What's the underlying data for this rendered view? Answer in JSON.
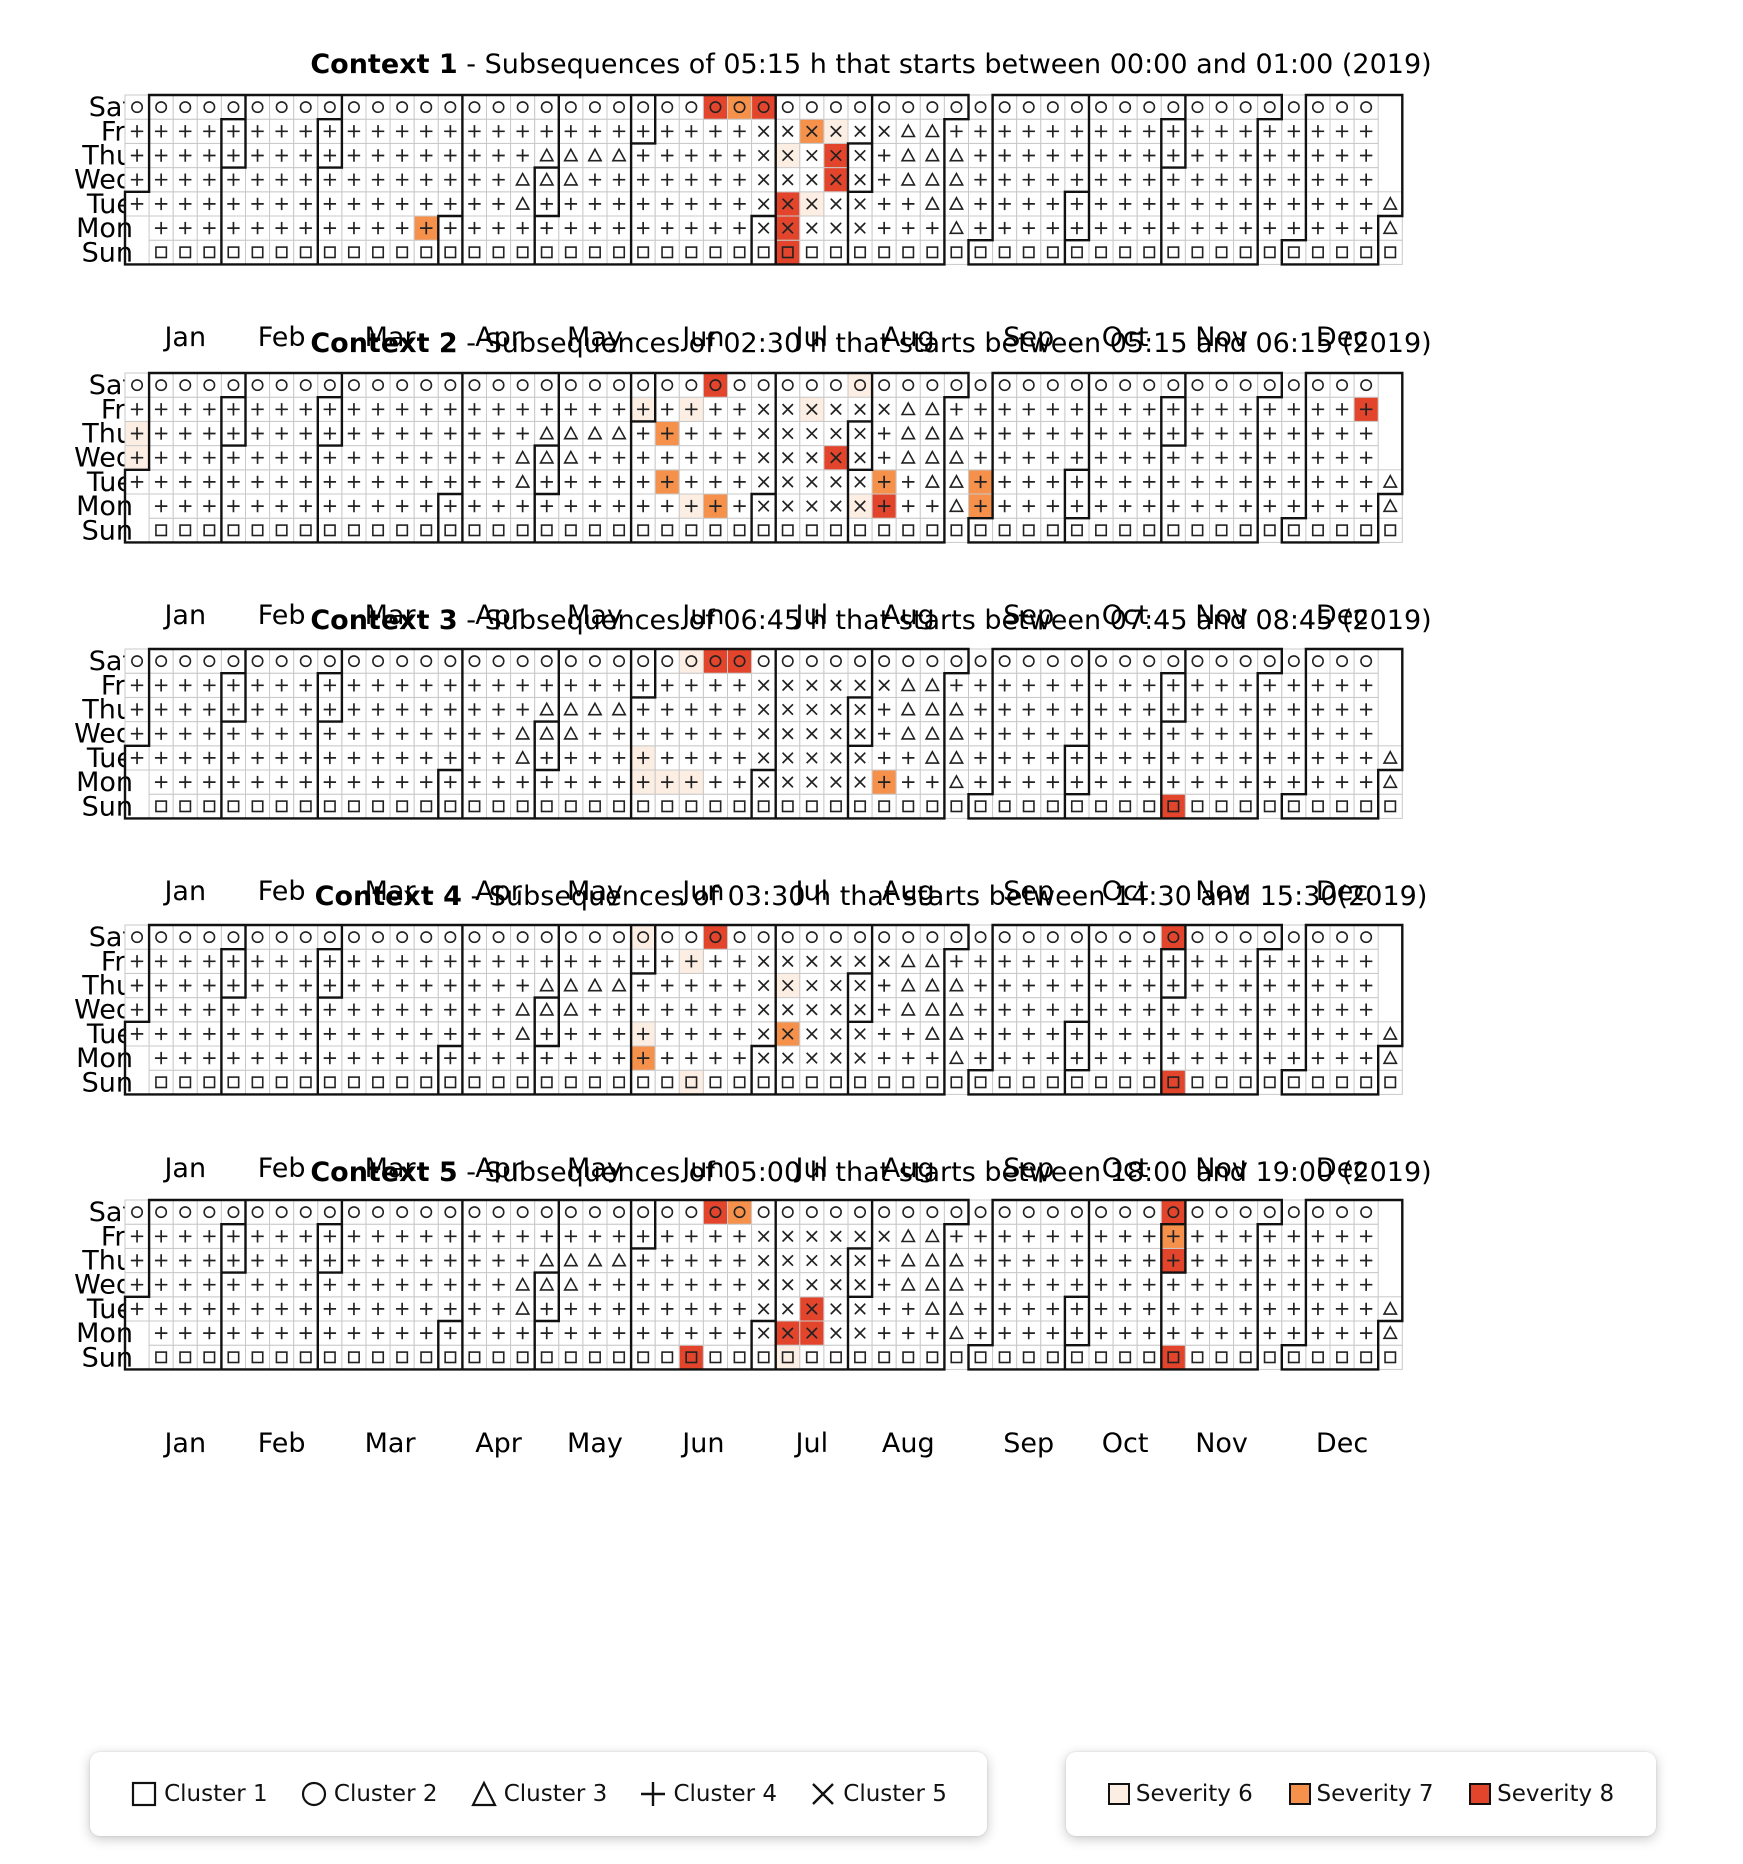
{
  "rows": [
    "Sat",
    "Fri",
    "Thu",
    "Wed",
    "Tue",
    "Mon",
    "Sun"
  ],
  "months": [
    "Jan",
    "Feb",
    "Mar",
    "Apr",
    "May",
    "Jun",
    "Jul",
    "Aug",
    "Sep",
    "Oct",
    "Nov",
    "Dec"
  ],
  "legend": {
    "clusters": [
      {
        "shape": "square",
        "label": "Cluster 1"
      },
      {
        "shape": "circle",
        "label": "Cluster 2"
      },
      {
        "shape": "triangle",
        "label": "Cluster 3"
      },
      {
        "shape": "plus",
        "label": "Cluster 4"
      },
      {
        "shape": "cross",
        "label": "Cluster 5"
      }
    ],
    "severity": [
      {
        "label": "Severity 6",
        "color": "#fdeee4"
      },
      {
        "label": "Severity 7",
        "color": "#f5914a"
      },
      {
        "label": "Severity 8",
        "color": "#e2452c"
      }
    ]
  },
  "chart_data": {
    "type": "heatmap",
    "year": 2019,
    "cluster_calendar": {
      "Jan": [
        "+",
        "o",
        "o",
        "o",
        "o",
        "o",
        "o",
        "+",
        "o",
        "o",
        "o",
        "o",
        "o",
        "o",
        "+",
        "o",
        "o",
        "o",
        "o",
        "o",
        "o",
        "+",
        "o",
        "o",
        "o",
        "o",
        "o",
        "o",
        "+",
        "o",
        "o"
      ],
      "Feb": [
        "o",
        "o",
        "o",
        "o",
        "o",
        "+",
        "o",
        "o",
        "o",
        "o",
        "o",
        "o",
        "+",
        "o",
        "o",
        "o",
        "o",
        "o",
        "o",
        "+",
        "o",
        "o",
        "o",
        "o",
        "o",
        "o",
        "+",
        "o"
      ],
      "Mar": [
        "o",
        "o",
        "o",
        "o",
        "+",
        "o",
        "o",
        "o",
        "o",
        "o",
        "o",
        "+",
        "o",
        "o",
        "o",
        "o",
        "o",
        "o",
        "+",
        "o",
        "o",
        "o",
        "o",
        "o",
        "o",
        "+",
        "o",
        "o",
        "o",
        "o",
        "o"
      ],
      "Apr": [
        "+",
        "o",
        "o",
        "o",
        "o",
        "o",
        "o",
        "+",
        "o",
        "o",
        "o",
        "o",
        "o",
        "o",
        "+",
        "o",
        "o",
        "o",
        "o",
        "o",
        "o",
        "+",
        "^",
        "^",
        "o",
        "o",
        "o",
        "o",
        "o",
        "o"
      ],
      "May": [
        "^",
        "^",
        "o",
        "o",
        "+",
        "o",
        "o",
        "^",
        "^",
        "o",
        "o",
        "o",
        "o",
        "o",
        "o",
        "^",
        "o",
        "o",
        "o",
        "o",
        "o",
        "o",
        "^",
        "o",
        "o",
        "o",
        "o",
        "o",
        "+",
        "o",
        "o"
      ],
      "Jun": [
        "+",
        "o",
        "o",
        "o",
        "o",
        "o",
        "o",
        "+",
        "o",
        "o",
        "o",
        "o",
        "o",
        "o",
        "o",
        "o",
        "o",
        "o",
        "o",
        "o",
        "o",
        "o",
        "o",
        "o",
        "o",
        "o",
        "o",
        "o",
        "o",
        "o"
      ],
      "Jul": [
        "x",
        "x",
        "x",
        "x",
        "x",
        "o",
        "o",
        "x",
        "x",
        "x",
        "x",
        "x",
        "o",
        "o",
        "x",
        "x",
        "x",
        "x",
        "x",
        "o",
        "o",
        "x",
        "x",
        "x",
        "x",
        "x",
        "o",
        "o",
        "x",
        "x",
        "x"
      ],
      "Aug": [
        "x",
        "x",
        "o",
        "o",
        "+",
        "+",
        "+",
        "+",
        "x",
        "^",
        "^",
        "o",
        "o",
        "^",
        "^",
        "^",
        "^",
        "o",
        "o",
        "^",
        "^",
        "^",
        "^",
        "o",
        "o",
        "^",
        "^",
        "^",
        "^",
        "o",
        "o"
      ],
      "Sep": [
        "o",
        "+",
        "+",
        "+",
        "+",
        "+",
        "o",
        "o",
        "+",
        "+",
        "+",
        "+",
        "+",
        "o",
        "o",
        "+",
        "+",
        "+",
        "+",
        "+",
        "o",
        "o",
        "+",
        "+",
        "+",
        "+",
        "+",
        "o",
        "o",
        "+"
      ],
      "Oct": [
        "+",
        "+",
        "+",
        "+",
        "o",
        "o",
        "+",
        "+",
        "+",
        "+",
        "+",
        "o",
        "o",
        "+",
        "+",
        "+",
        "+",
        "+",
        "o",
        "o",
        "+",
        "+",
        "+",
        "+",
        "+",
        "o",
        "o",
        "+",
        "+",
        "+",
        "+"
      ],
      "Nov": [
        "+",
        "o",
        "o",
        "+",
        "+",
        "+",
        "+",
        "+",
        "o",
        "o",
        "+",
        "+",
        "+",
        "+",
        "+",
        "o",
        "o",
        "+",
        "+",
        "+",
        "+",
        "+",
        "o",
        "o",
        "+",
        "+",
        "+",
        "+",
        "+",
        "o"
      ],
      "Dec": [
        "o",
        "+",
        "+",
        "+",
        "+",
        "+",
        "o",
        "o",
        "+",
        "+",
        "+",
        "+",
        "+",
        "o",
        "o",
        "+",
        "+",
        "+",
        "+",
        "+",
        "o",
        "o",
        "+",
        "+",
        "+",
        "+",
        "+",
        "o",
        "o",
        "^",
        "^"
      ]
    },
    "contexts": [
      {
        "label": "Context 1",
        "subtitle": " - Subsequences of 05:15 h that starts between 00:00 and 01:00 (2019)",
        "severity_cells": [
          {
            "date": "2019-03-25",
            "severity": 7
          },
          {
            "date": "2019-06-22",
            "severity": 8
          },
          {
            "date": "2019-06-29",
            "severity": 7
          },
          {
            "date": "2019-07-06",
            "severity": 8
          },
          {
            "date": "2019-07-07",
            "severity": 8
          },
          {
            "date": "2019-07-08",
            "severity": 8
          },
          {
            "date": "2019-07-09",
            "severity": 8
          },
          {
            "date": "2019-07-11",
            "severity": 6
          },
          {
            "date": "2019-07-16",
            "severity": 6
          },
          {
            "date": "2019-07-19",
            "severity": 7
          },
          {
            "date": "2019-07-24",
            "severity": 8
          },
          {
            "date": "2019-07-25",
            "severity": 8
          },
          {
            "date": "2019-07-26",
            "severity": 6
          }
        ]
      },
      {
        "label": "Context 2",
        "subtitle": " - Subsequences of 02:30 h that starts between 05:15 and 06:15 (2019)",
        "severity_cells": [
          {
            "date": "2019-01-02",
            "severity": 6
          },
          {
            "date": "2019-01-03",
            "severity": 6
          },
          {
            "date": "2019-05-31",
            "severity": 6
          },
          {
            "date": "2019-06-04",
            "severity": 7
          },
          {
            "date": "2019-06-06",
            "severity": 7
          },
          {
            "date": "2019-06-10",
            "severity": 6
          },
          {
            "date": "2019-06-14",
            "severity": 6
          },
          {
            "date": "2019-06-17",
            "severity": 7
          },
          {
            "date": "2019-06-22",
            "severity": 8
          },
          {
            "date": "2019-07-19",
            "severity": 6
          },
          {
            "date": "2019-07-24",
            "severity": 8
          },
          {
            "date": "2019-07-29",
            "severity": 6
          },
          {
            "date": "2019-08-03",
            "severity": 6
          },
          {
            "date": "2019-08-05",
            "severity": 8
          },
          {
            "date": "2019-08-06",
            "severity": 7
          },
          {
            "date": "2019-09-02",
            "severity": 7
          },
          {
            "date": "2019-09-03",
            "severity": 7
          },
          {
            "date": "2019-12-27",
            "severity": 8
          }
        ]
      },
      {
        "label": "Context 3",
        "subtitle": " - Subsequences of 06:45 h that starts between 07:45 and 08:45 (2019)",
        "severity_cells": [
          {
            "date": "2019-05-27",
            "severity": 6
          },
          {
            "date": "2019-05-28",
            "severity": 6
          },
          {
            "date": "2019-06-03",
            "severity": 6
          },
          {
            "date": "2019-06-10",
            "severity": 6
          },
          {
            "date": "2019-06-15",
            "severity": 6
          },
          {
            "date": "2019-06-22",
            "severity": 8
          },
          {
            "date": "2019-06-29",
            "severity": 8
          },
          {
            "date": "2019-08-05",
            "severity": 7
          },
          {
            "date": "2019-10-27",
            "severity": 8
          }
        ]
      },
      {
        "label": "Context 4",
        "subtitle": " - Subsequences of 03:30 h that starts between 14:30 and 15:30(2019)",
        "severity_cells": [
          {
            "date": "2019-05-27",
            "severity": 7
          },
          {
            "date": "2019-05-28",
            "severity": 6
          },
          {
            "date": "2019-06-01",
            "severity": 6
          },
          {
            "date": "2019-06-09",
            "severity": 6
          },
          {
            "date": "2019-06-14",
            "severity": 6
          },
          {
            "date": "2019-06-22",
            "severity": 8
          },
          {
            "date": "2019-07-09",
            "severity": 7
          },
          {
            "date": "2019-07-11",
            "severity": 6
          },
          {
            "date": "2019-10-27",
            "severity": 8
          },
          {
            "date": "2019-11-02",
            "severity": 8
          }
        ]
      },
      {
        "label": "Context 5",
        "subtitle": " - Subsequences of 05:00 h that starts between 18:00 and 19:00 (2019)",
        "severity_cells": [
          {
            "date": "2019-06-09",
            "severity": 8
          },
          {
            "date": "2019-06-22",
            "severity": 8
          },
          {
            "date": "2019-06-29",
            "severity": 7
          },
          {
            "date": "2019-07-07",
            "severity": 6
          },
          {
            "date": "2019-07-08",
            "severity": 8
          },
          {
            "date": "2019-07-16",
            "severity": 8
          },
          {
            "date": "2019-07-15",
            "severity": 8
          },
          {
            "date": "2019-10-27",
            "severity": 8
          },
          {
            "date": "2019-10-31",
            "severity": 8
          },
          {
            "date": "2019-11-01",
            "severity": 7
          },
          {
            "date": "2019-11-02",
            "severity": 8
          }
        ]
      }
    ]
  }
}
